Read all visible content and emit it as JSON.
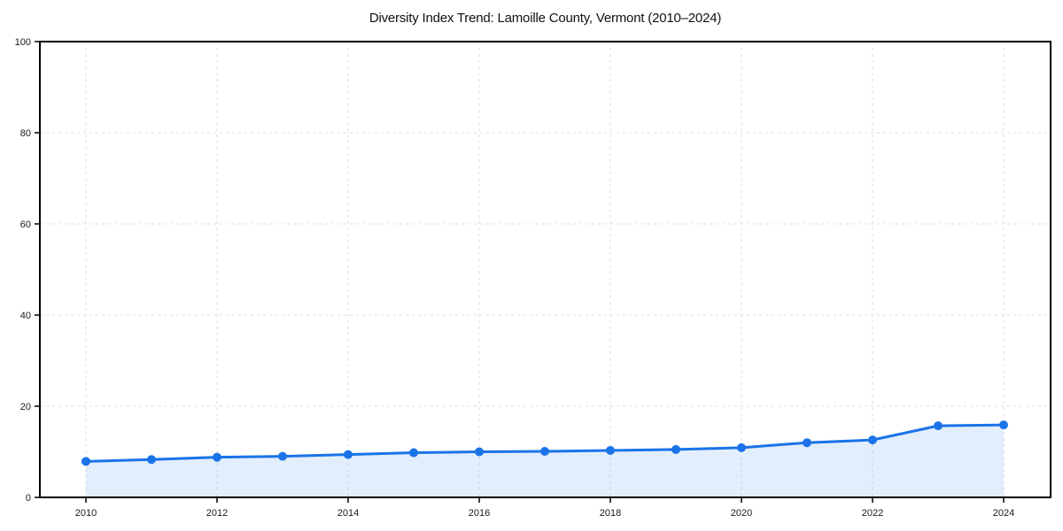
{
  "chart_data": {
    "type": "area",
    "title": "Diversity Index Trend: Lamoille County, Vermont (2010–2024)",
    "x": [
      2010,
      2011,
      2012,
      2013,
      2014,
      2015,
      2016,
      2017,
      2018,
      2019,
      2020,
      2021,
      2022,
      2023,
      2024
    ],
    "series": [
      {
        "name": "Diversity Index",
        "values": [
          7.9,
          8.3,
          8.8,
          9.0,
          9.4,
          9.8,
          10.0,
          10.1,
          10.3,
          10.5,
          10.9,
          12.0,
          12.6,
          15.7,
          15.9
        ]
      }
    ],
    "xlabel": "",
    "ylabel": "",
    "ylim": [
      0,
      100
    ],
    "yticks": [
      0,
      20,
      40,
      60,
      80,
      100
    ],
    "xticks": [
      2010,
      2012,
      2014,
      2016,
      2018,
      2020,
      2022,
      2024
    ],
    "grid": true,
    "grid_style": "dashed",
    "legend": false,
    "colors": {
      "line": "#1a73e8",
      "marker": "#1a73e8",
      "fill": "rgba(26,115,232,0.12)",
      "grid": "#dedede",
      "spine": "#000000",
      "tick_label": "#1a1a1a",
      "title": "#111111",
      "background": "#ffffff"
    }
  }
}
